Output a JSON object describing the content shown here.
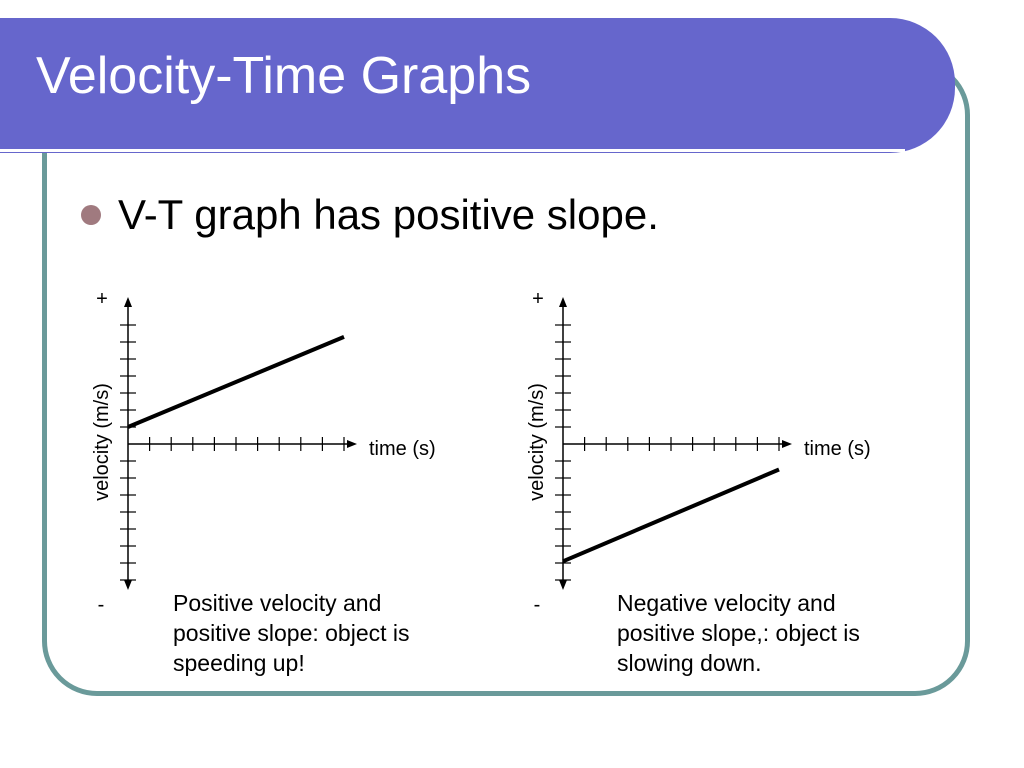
{
  "title": "Velocity-Time Graphs",
  "bullet": "V-T graph has positive slope.",
  "colors": {
    "title_bar": "#6666cc",
    "frame_border": "#6a9a9a",
    "bullet_dot": "#a07a7f"
  },
  "chart_data": [
    {
      "type": "line",
      "xlabel": "time (s)",
      "ylabel": "velocity (m/s)",
      "y_positive_label": "+",
      "y_negative_label": "-",
      "x_ticks": 10,
      "y_ticks_above": 7,
      "y_ticks_below": 8,
      "series": [
        {
          "x": [
            0,
            10
          ],
          "y": [
            1,
            6.3
          ]
        }
      ],
      "caption": "Positive velocity and\npositive slope: object is\nspeeding up!"
    },
    {
      "type": "line",
      "xlabel": "time (s)",
      "ylabel": "velocity (m/s)",
      "y_positive_label": "+",
      "y_negative_label": "-",
      "x_ticks": 10,
      "y_ticks_above": 7,
      "y_ticks_below": 8,
      "series": [
        {
          "x": [
            0,
            10
          ],
          "y": [
            -6.9,
            -1.5
          ]
        }
      ],
      "caption": "Negative velocity and\npositive slope,: object is\nslowing down."
    }
  ]
}
